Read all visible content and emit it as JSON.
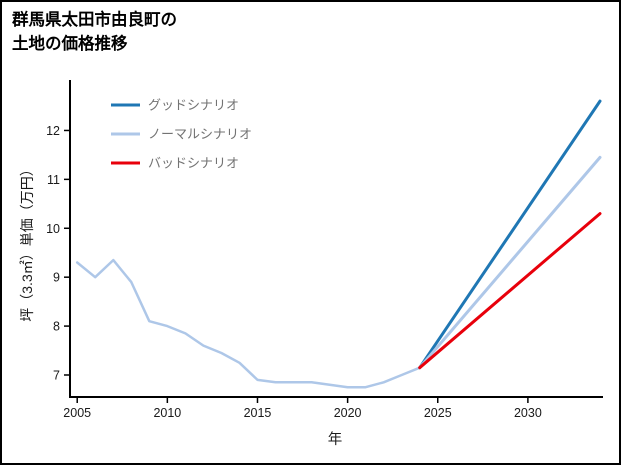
{
  "title": {
    "line1": "群馬県太田市由良町の",
    "line2": "土地の価格推移"
  },
  "chart_data": {
    "type": "line",
    "title": "群馬県太田市由良町の土地の価格推移",
    "xlabel": "年",
    "ylabel": "坪（3.3㎡）単価（万円）",
    "xlim": [
      2004.6,
      2034
    ],
    "ylim": [
      6.55,
      12.95
    ],
    "xticks": [
      2005,
      2010,
      2015,
      2020,
      2025,
      2030
    ],
    "yticks": [
      7,
      8,
      9,
      10,
      11,
      12
    ],
    "grid": false,
    "legend_position": "upper-left",
    "colors": {
      "good": "#1f77b4",
      "normal": "#aec7e8",
      "bad": "#e8000b",
      "axis": "#000000",
      "legend_text": "#737373",
      "tick_text": "#1a1a1a"
    },
    "legend": [
      {
        "key": "good",
        "label": "グッドシナリオ"
      },
      {
        "key": "normal",
        "label": "ノーマルシナリオ"
      },
      {
        "key": "bad",
        "label": "バッドシナリオ"
      }
    ],
    "series": [
      {
        "key": "history",
        "color": "#aec7e8",
        "width": 2.5,
        "x": [
          2005,
          2006,
          2007,
          2008,
          2009,
          2010,
          2011,
          2012,
          2013,
          2014,
          2015,
          2016,
          2017,
          2018,
          2019,
          2020,
          2021,
          2022,
          2023,
          2024
        ],
        "values": [
          9.3,
          9.0,
          9.35,
          8.9,
          8.1,
          8.0,
          7.85,
          7.6,
          7.45,
          7.25,
          6.9,
          6.85,
          6.85,
          6.85,
          6.8,
          6.75,
          6.75,
          6.85,
          7.0,
          7.15
        ]
      },
      {
        "key": "good",
        "color": "#1f77b4",
        "width": 3,
        "x": [
          2024,
          2034
        ],
        "values": [
          7.15,
          12.6
        ]
      },
      {
        "key": "normal",
        "color": "#aec7e8",
        "width": 3,
        "x": [
          2024,
          2034
        ],
        "values": [
          7.15,
          11.45
        ]
      },
      {
        "key": "bad",
        "color": "#e8000b",
        "width": 3,
        "x": [
          2024,
          2034
        ],
        "values": [
          7.15,
          10.3
        ]
      }
    ]
  }
}
